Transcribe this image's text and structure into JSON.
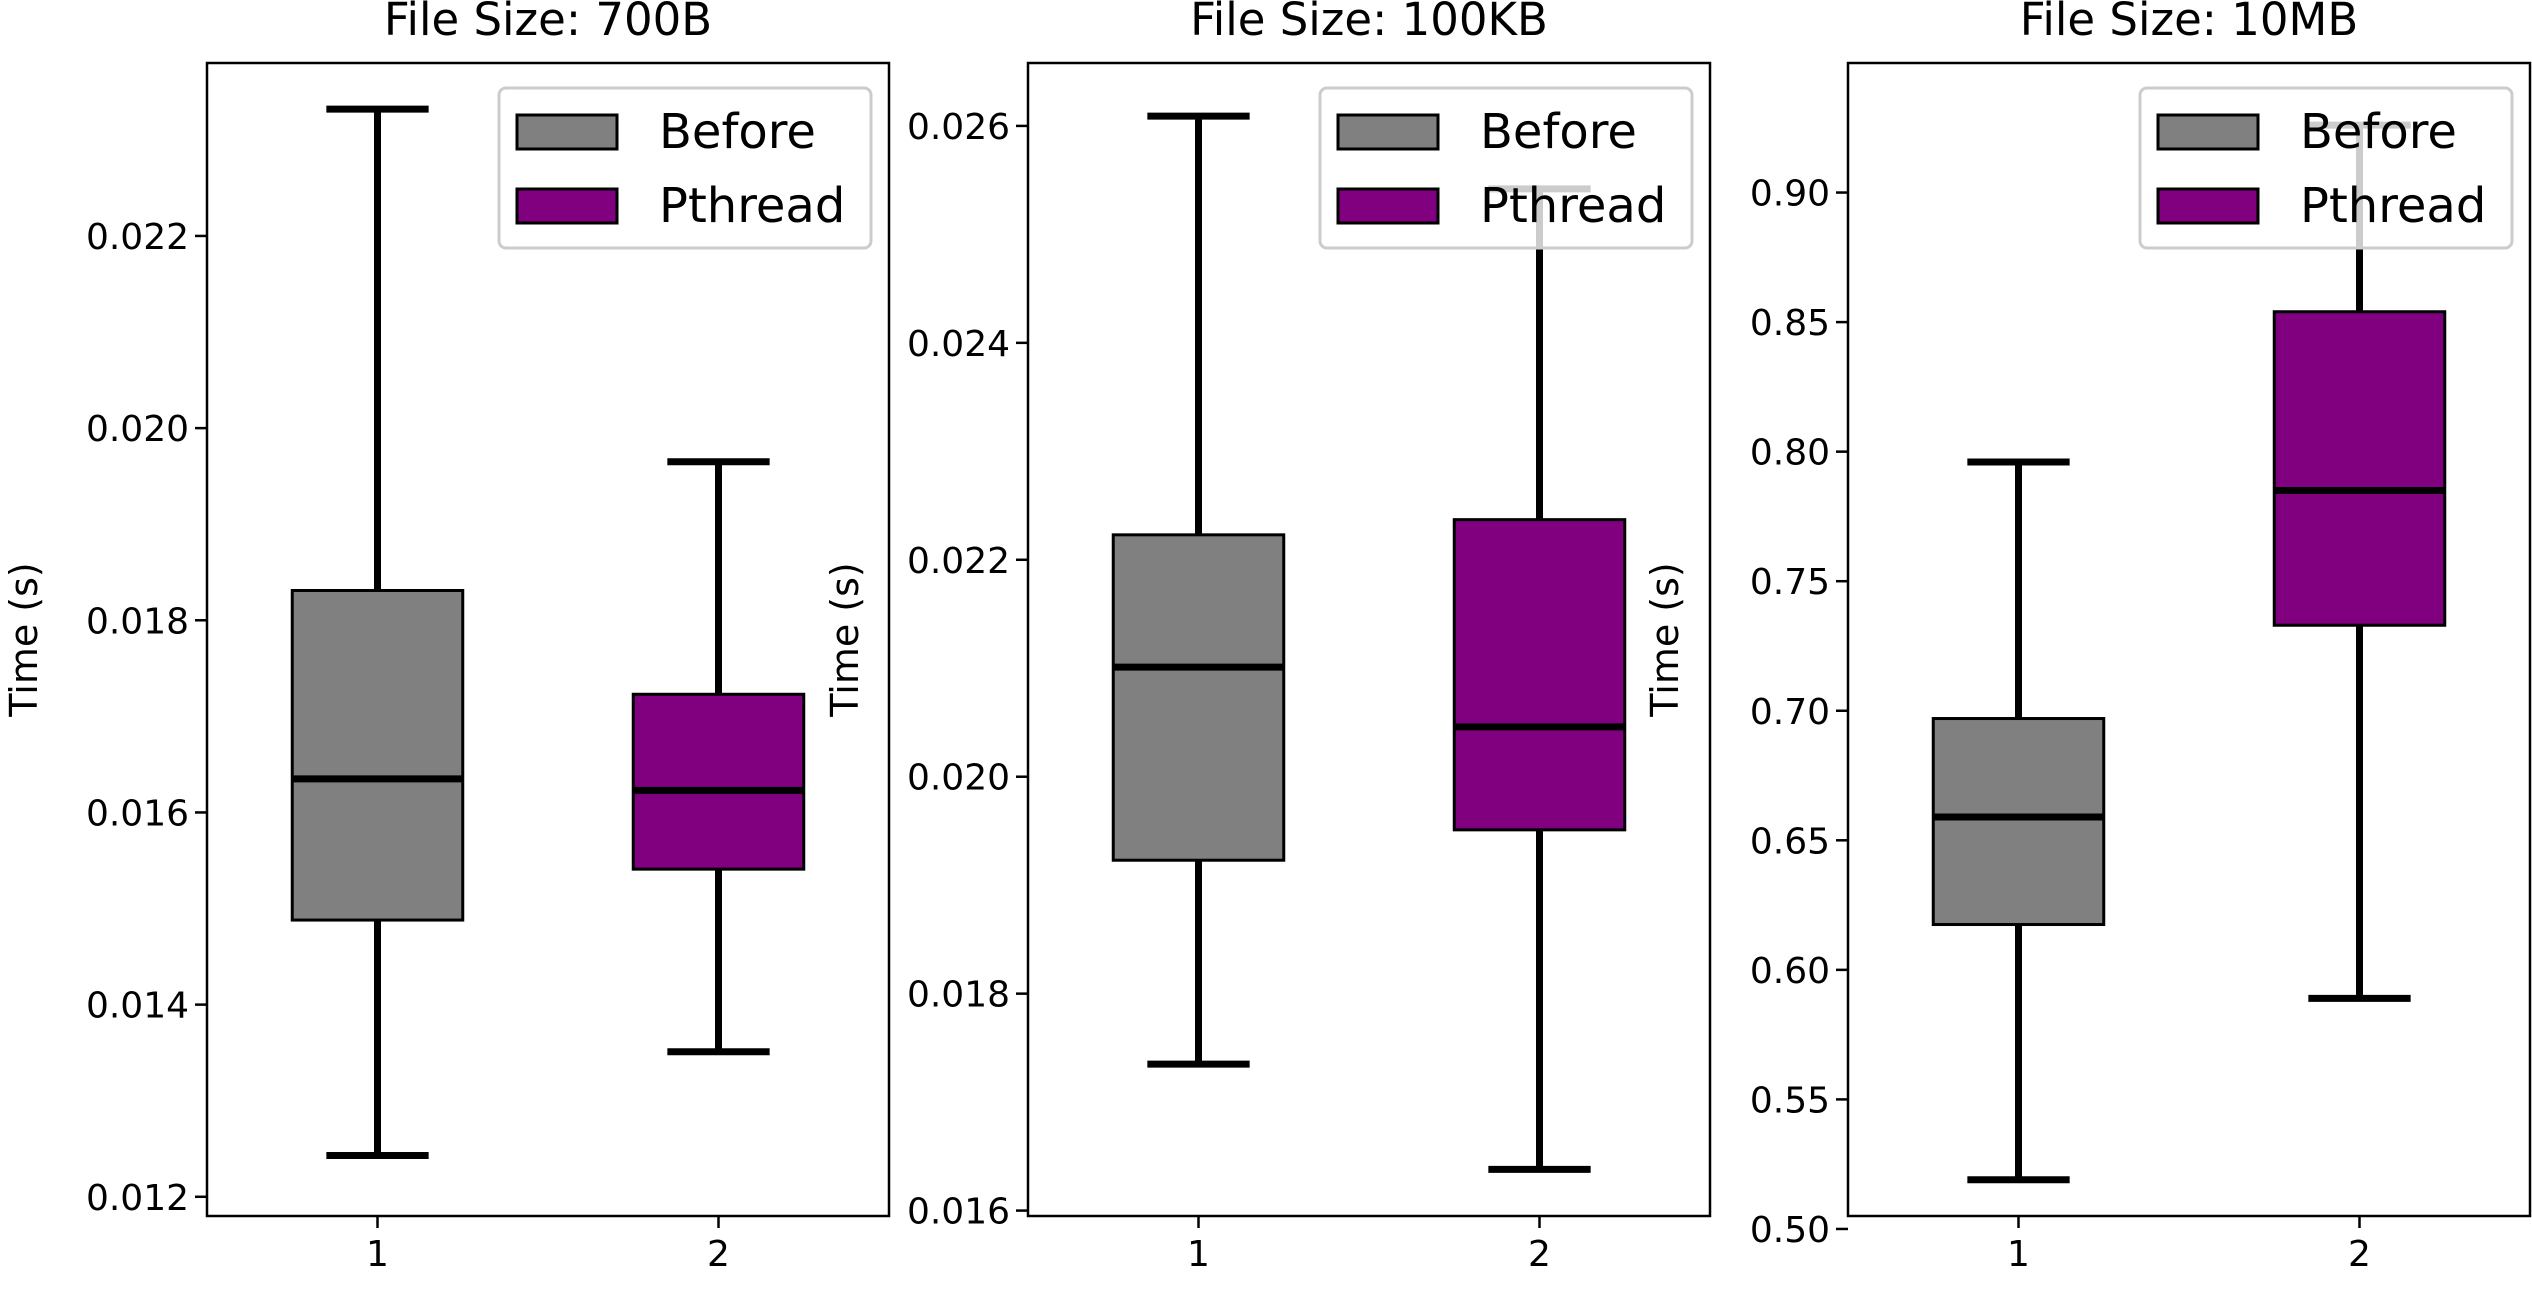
{
  "chart_data": [
    {
      "type": "box",
      "title": "File Size: 700B",
      "xlabel": "",
      "ylabel": "Time (s)",
      "categories": [
        "1",
        "2"
      ],
      "ylim": [
        0.0118,
        0.0238
      ],
      "yticks": [
        "0.012",
        "0.014",
        "0.016",
        "0.018",
        "0.020",
        "0.022"
      ],
      "legend": {
        "placement": "top-right",
        "entries": [
          "Before",
          "Pthread"
        ]
      },
      "series": [
        {
          "name": "Before",
          "color": "#808080",
          "x": 1,
          "whisker_low": 0.01243,
          "q1": 0.01488,
          "median": 0.01635,
          "q3": 0.01831,
          "whisker_high": 0.02332
        },
        {
          "name": "Pthread",
          "color": "#800080",
          "x": 2,
          "whisker_low": 0.01351,
          "q1": 0.01541,
          "median": 0.01623,
          "q3": 0.01723,
          "whisker_high": 0.01965
        }
      ]
    },
    {
      "type": "box",
      "title": "File Size: 100KB",
      "xlabel": "",
      "ylabel": "Time (s)",
      "categories": [
        "1",
        "2"
      ],
      "ylim": [
        0.01595,
        0.02658
      ],
      "yticks": [
        "0.016",
        "0.018",
        "0.020",
        "0.022",
        "0.024",
        "0.026"
      ],
      "legend": {
        "placement": "top-right",
        "entries": [
          "Before",
          "Pthread"
        ]
      },
      "series": [
        {
          "name": "Before",
          "color": "#808080",
          "x": 1,
          "whisker_low": 0.01735,
          "q1": 0.01923,
          "median": 0.02101,
          "q3": 0.02223,
          "whisker_high": 0.02609
        },
        {
          "name": "Pthread",
          "color": "#800080",
          "x": 2,
          "whisker_low": 0.01638,
          "q1": 0.01951,
          "median": 0.02046,
          "q3": 0.02237,
          "whisker_high": 0.02542
        }
      ]
    },
    {
      "type": "box",
      "title": "File Size: 10MB",
      "xlabel": "",
      "ylabel": "Time (s)",
      "categories": [
        "1",
        "2"
      ],
      "ylim": [
        0.505,
        0.95
      ],
      "yticks": [
        "0.50",
        "0.55",
        "0.60",
        "0.65",
        "0.70",
        "0.75",
        "0.80",
        "0.85",
        "0.90"
      ],
      "legend": {
        "placement": "top-right",
        "entries": [
          "Before",
          "Pthread"
        ]
      },
      "series": [
        {
          "name": "Before",
          "color": "#808080",
          "x": 1,
          "whisker_low": 0.519,
          "q1": 0.6175,
          "median": 0.659,
          "q3": 0.697,
          "whisker_high": 0.796
        },
        {
          "name": "Pthread",
          "color": "#800080",
          "x": 2,
          "whisker_low": 0.589,
          "q1": 0.733,
          "median": 0.785,
          "q3": 0.854,
          "whisker_high": 0.926
        }
      ]
    }
  ]
}
